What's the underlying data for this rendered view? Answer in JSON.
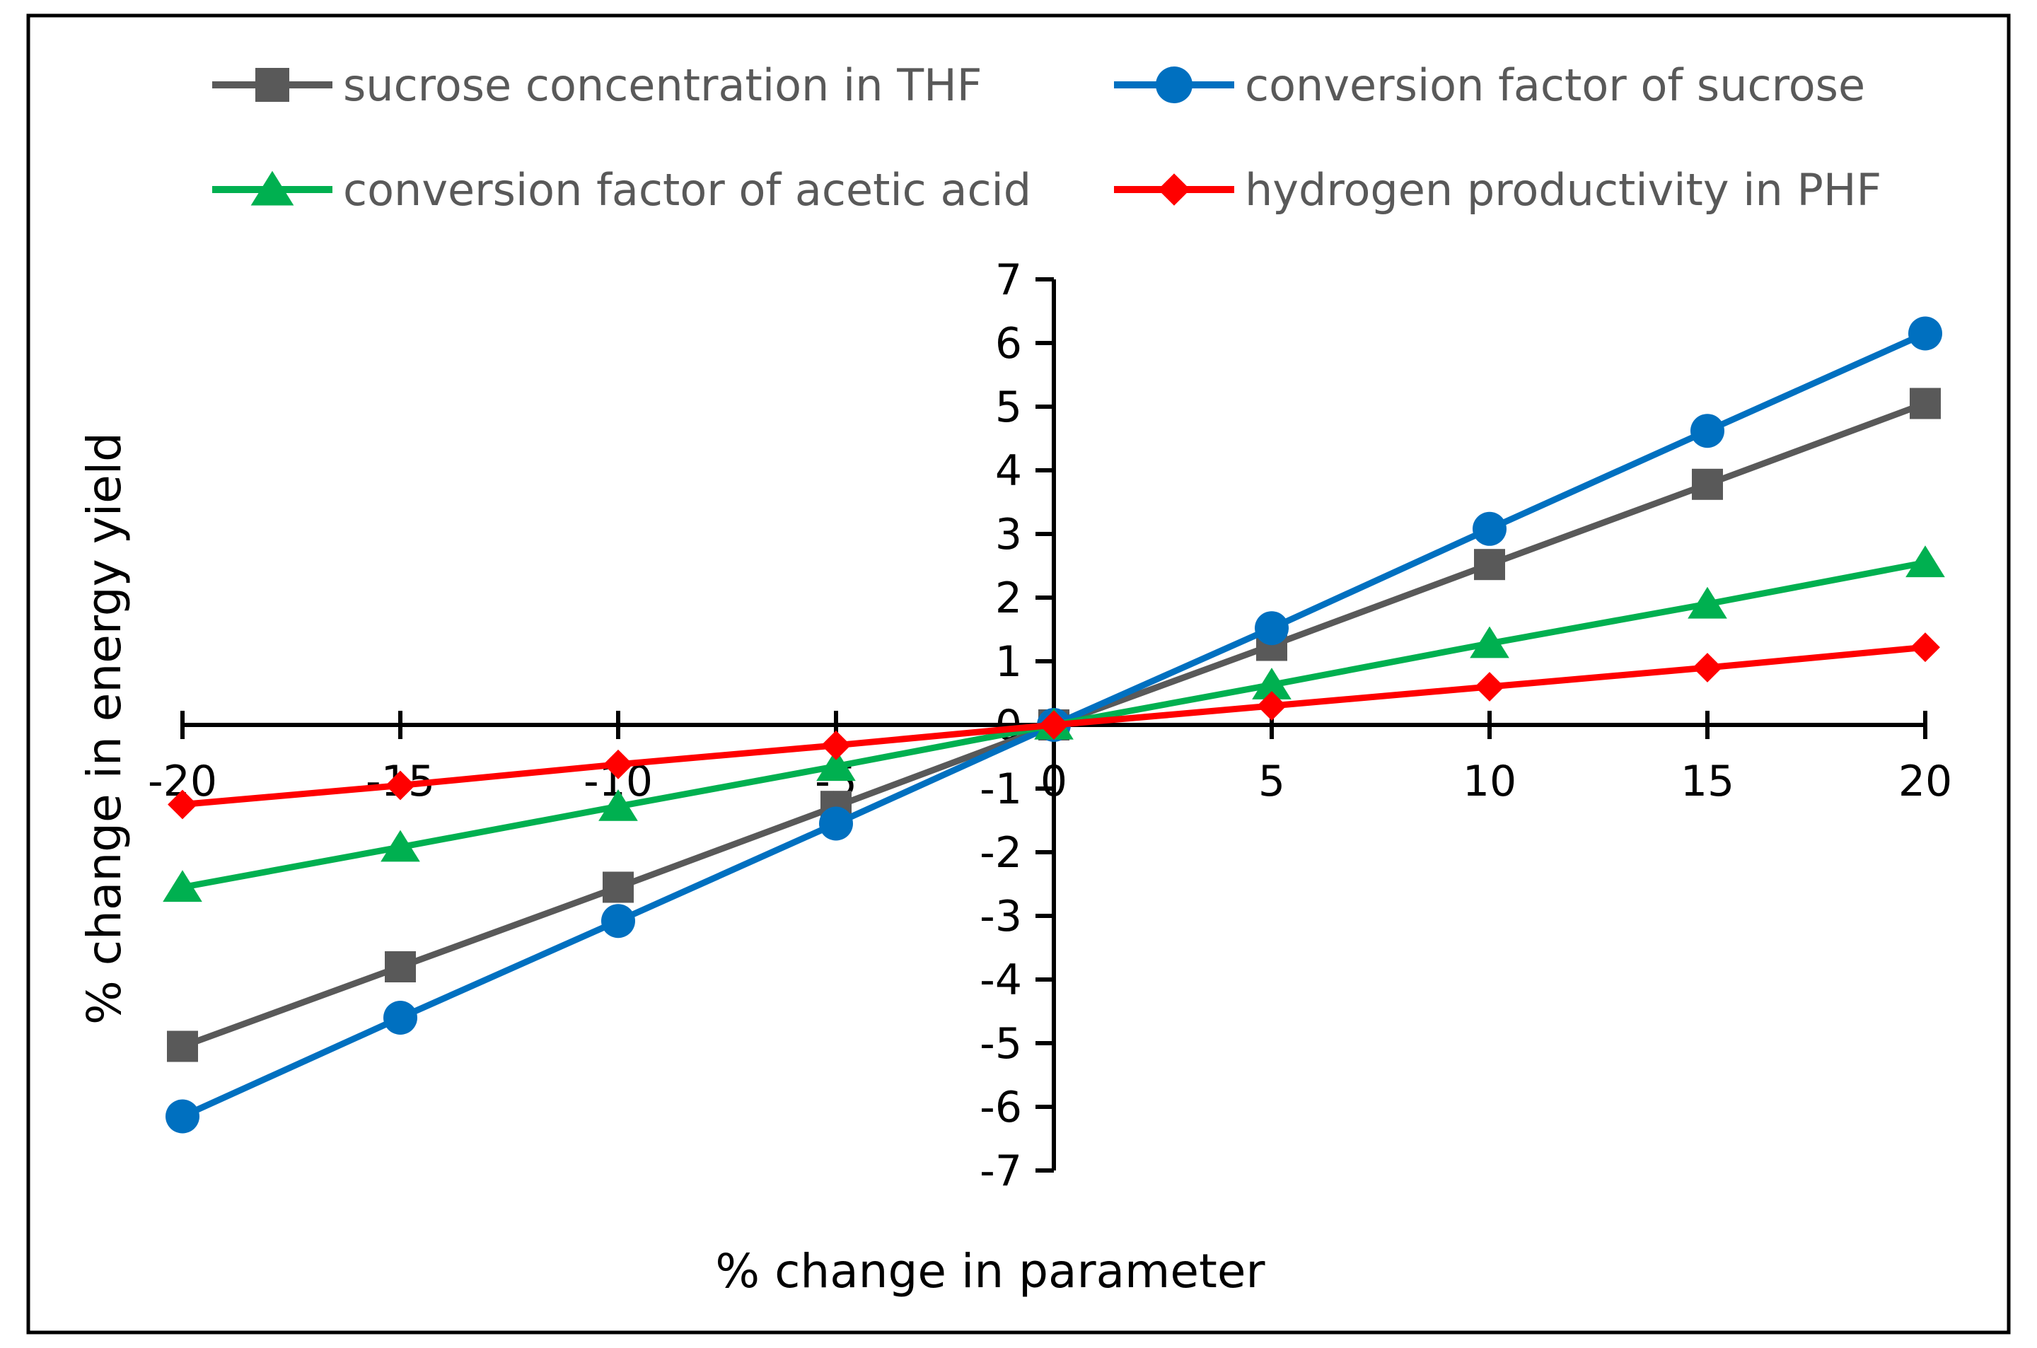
{
  "chart_data": {
    "type": "line",
    "xlabel": "% change in parameter",
    "ylabel": "% change in energy yield",
    "x": [
      -20,
      -15,
      -10,
      -5,
      0,
      5,
      10,
      15,
      20
    ],
    "xticks": [
      -20,
      -15,
      -10,
      -5,
      0,
      5,
      10,
      15,
      20
    ],
    "yticks": [
      7,
      6,
      5,
      4,
      3,
      2,
      1,
      0,
      -1,
      -2,
      -3,
      -4,
      -5,
      -6,
      -7
    ],
    "xlim": [
      -20,
      20
    ],
    "ylim": [
      -7,
      7
    ],
    "grid": false,
    "legend_position": "top",
    "series": [
      {
        "name": "sucrose concentration in THF",
        "color": "#595959",
        "marker": "square",
        "values": [
          -5.05,
          -3.8,
          -2.55,
          -1.28,
          0,
          1.25,
          2.52,
          3.78,
          5.05
        ]
      },
      {
        "name": "conversion factor of sucrose",
        "color": "#0070C0",
        "marker": "circle",
        "values": [
          -6.15,
          -4.6,
          -3.08,
          -1.55,
          0,
          1.52,
          3.08,
          4.62,
          6.15
        ]
      },
      {
        "name": "conversion factor of acetic acid",
        "color": "#00B050",
        "marker": "triangle",
        "values": [
          -2.55,
          -1.92,
          -1.28,
          -0.65,
          0,
          0.63,
          1.28,
          1.9,
          2.55
        ]
      },
      {
        "name": "hydrogen productivity in PHF",
        "color": "#FF0000",
        "marker": "diamond",
        "values": [
          -1.25,
          -0.95,
          -0.62,
          -0.32,
          0,
          0.3,
          0.6,
          0.9,
          1.22
        ]
      }
    ]
  }
}
